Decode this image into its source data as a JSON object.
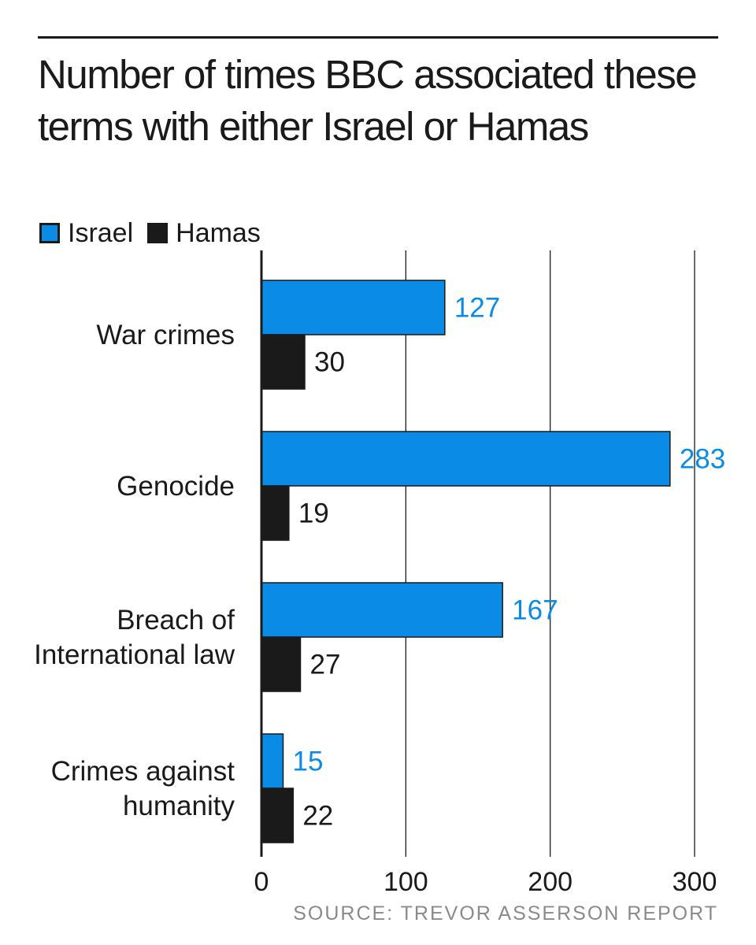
{
  "title": "Number of times BBC associated these terms with either Israel or Hamas",
  "legend": [
    {
      "label": "Israel",
      "color": "#0a8ce6"
    },
    {
      "label": "Hamas",
      "color": "#1a1a1a"
    }
  ],
  "source": "SOURCE: TREVOR ASSERSON REPORT",
  "chart_data": {
    "type": "bar",
    "orientation": "horizontal",
    "categories": [
      [
        "War crimes"
      ],
      [
        "Genocide"
      ],
      [
        "Breach of",
        "International law"
      ],
      [
        "Crimes against",
        "humanity"
      ]
    ],
    "series": [
      {
        "name": "Israel",
        "color": "#0a8ce6",
        "label_color": "#0a8ce6",
        "values": [
          127,
          283,
          167,
          15
        ]
      },
      {
        "name": "Hamas",
        "color": "#1a1a1a",
        "label_color": "#1a1a1a",
        "values": [
          30,
          19,
          27,
          22
        ]
      }
    ],
    "xlim": [
      0,
      300
    ],
    "xticks": [
      0,
      100,
      200,
      300
    ],
    "grid": true,
    "legend_position": "top-left"
  }
}
